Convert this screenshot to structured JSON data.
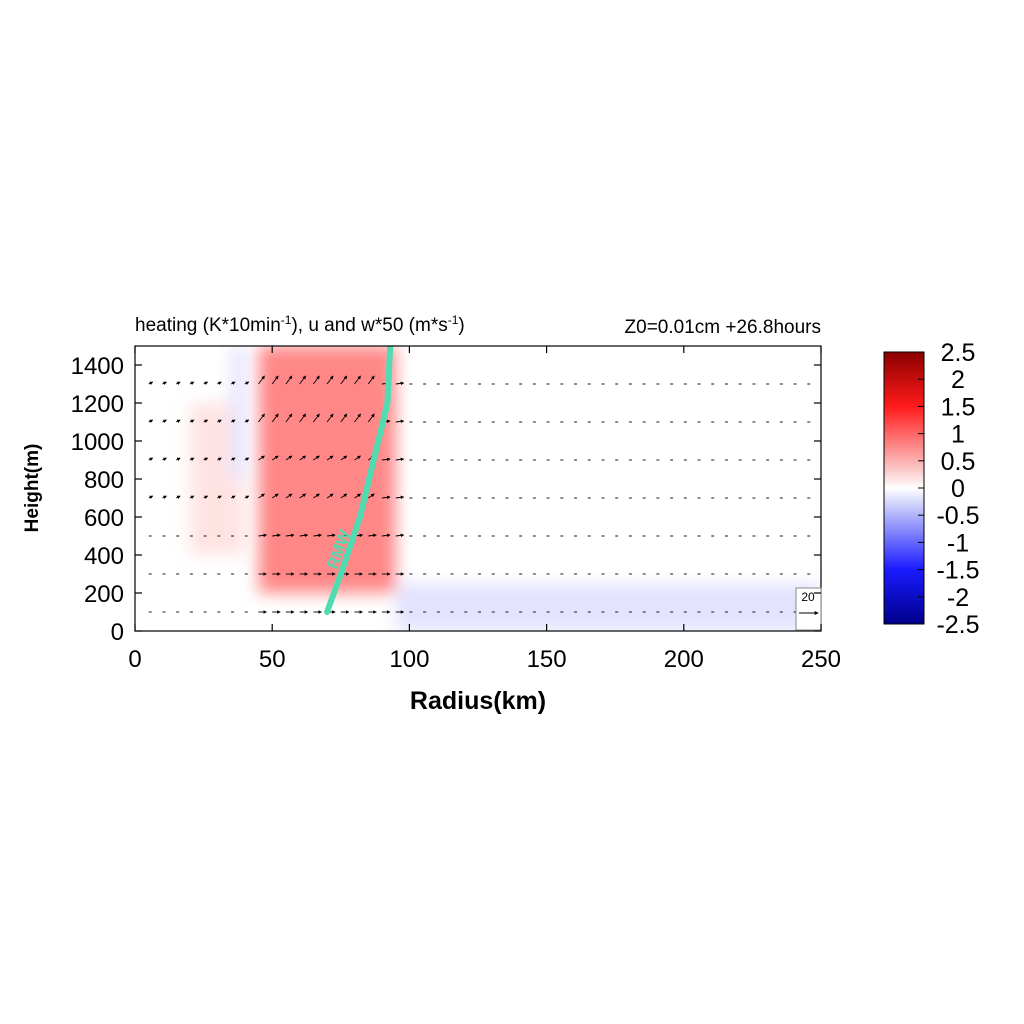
{
  "chart_data": {
    "type": "heatmap",
    "title_left": "heating (K*10min",
    "title_left_sup1": "-1",
    "title_left_mid": "), u and w*50 (m*s",
    "title_left_sup2": "-1",
    "title_left_end": ")",
    "title_right": "Z0=0.01cm  +26.8hours",
    "xlabel": "Radius(km)",
    "ylabel": "Height(m)",
    "xlim": [
      0,
      250
    ],
    "ylim": [
      0,
      1500
    ],
    "xticks": [
      0,
      50,
      100,
      150,
      200,
      250
    ],
    "yticks": [
      0,
      200,
      400,
      600,
      800,
      1000,
      1200,
      1400
    ],
    "colorbar": {
      "range": [
        -2.5,
        2.5
      ],
      "ticks": [
        "2.5",
        "2",
        "1.5",
        "1",
        "0.5",
        "0",
        "-0.5",
        "-1",
        "-1.5",
        "-2",
        "-2.5"
      ]
    },
    "rmw_label": "RMW",
    "rmw_line": [
      [
        70,
        100
      ],
      [
        75,
        300
      ],
      [
        82,
        600
      ],
      [
        87,
        900
      ],
      [
        92,
        1200
      ],
      [
        93,
        1500
      ]
    ],
    "reference_vector": {
      "label": "20",
      "value": 20
    },
    "vector_levels": [
      100,
      300,
      500,
      700,
      900,
      1100,
      1300
    ],
    "heating_features": [
      {
        "r_min": 45,
        "r_max": 95,
        "z_min": 200,
        "z_max": 1500,
        "value": 1.3
      },
      {
        "r_min": 20,
        "r_max": 40,
        "z_min": 400,
        "z_max": 1200,
        "value": 0.3
      },
      {
        "r_min": 95,
        "r_max": 250,
        "z_min": 0,
        "z_max": 250,
        "value": -0.3
      },
      {
        "r_min": 35,
        "r_max": 40,
        "z_min": 800,
        "z_max": 1500,
        "value": -0.3
      }
    ]
  }
}
